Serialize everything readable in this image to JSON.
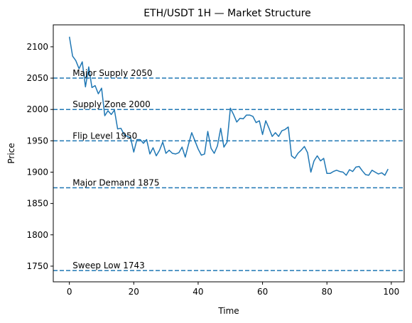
{
  "chart_data": {
    "type": "line",
    "title": "ETH/USDT 1H — Market Structure",
    "xlabel": "Time",
    "ylabel": "Price",
    "xlim": [
      -5,
      104
    ],
    "ylim": [
      1725,
      2135
    ],
    "x_ticks": [
      0,
      20,
      40,
      60,
      80,
      100
    ],
    "y_ticks": [
      1750,
      1800,
      1850,
      1900,
      1950,
      2000,
      2050,
      2100
    ],
    "grid": false,
    "line_color": "#1f77b4",
    "series": [
      {
        "x": [
          0,
          1,
          2,
          3,
          4,
          5,
          6,
          7,
          8,
          9,
          10,
          11,
          12,
          13,
          14,
          15,
          16,
          17,
          18,
          19,
          20,
          21,
          22,
          23,
          24,
          25,
          26,
          27,
          28,
          29,
          30,
          31,
          32,
          33,
          34,
          35,
          36,
          37,
          38,
          39,
          40,
          41,
          42,
          43,
          44,
          45,
          46,
          47,
          48,
          49,
          50,
          51,
          52,
          53,
          54,
          55,
          56,
          57,
          58,
          59,
          60,
          61,
          62,
          63,
          64,
          65,
          66,
          67,
          68,
          69,
          70,
          71,
          72,
          73,
          74,
          75,
          76,
          77,
          78,
          79,
          80,
          81,
          82,
          83,
          84,
          85,
          86,
          87,
          88,
          89,
          90,
          91,
          92,
          93,
          94,
          95,
          96,
          97,
          98,
          99
        ],
        "y": [
          2116,
          2085,
          2078,
          2065,
          2076,
          2036,
          2068,
          2035,
          2038,
          2025,
          2034,
          1990,
          1998,
          1992,
          1999,
          1969,
          1970,
          1960,
          1957,
          1955,
          1932,
          1952,
          1952,
          1946,
          1952,
          1929,
          1939,
          1926,
          1935,
          1948,
          1930,
          1935,
          1930,
          1929,
          1931,
          1940,
          1924,
          1944,
          1963,
          1950,
          1937,
          1927,
          1929,
          1965,
          1938,
          1930,
          1942,
          1970,
          1940,
          1948,
          2002,
          1992,
          1980,
          1986,
          1985,
          1991,
          1991,
          1989,
          1979,
          1982,
          1960,
          1982,
          1970,
          1957,
          1963,
          1957,
          1966,
          1968,
          1972,
          1926,
          1922,
          1930,
          1935,
          1941,
          1931,
          1900,
          1918,
          1926,
          1918,
          1922,
          1898,
          1898,
          1901,
          1903,
          1901,
          1900,
          1895,
          1904,
          1901,
          1908,
          1909,
          1902,
          1896,
          1895,
          1903,
          1900,
          1897,
          1899,
          1895,
          1905
        ]
      }
    ],
    "levels": [
      {
        "name": "Major Supply 2050",
        "value": 2050
      },
      {
        "name": "Supply Zone 2000",
        "value": 2000
      },
      {
        "name": "Flip Level 1950",
        "value": 1950
      },
      {
        "name": "Major Demand 1875",
        "value": 1875
      },
      {
        "name": "Sweep Low 1743",
        "value": 1743
      }
    ],
    "level_style": "dashed",
    "level_color": "#1f77b4"
  }
}
